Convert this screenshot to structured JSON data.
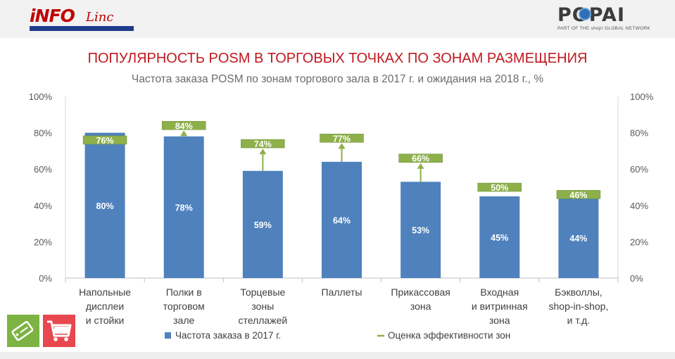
{
  "header": {
    "logo_left": {
      "word": "iNFO",
      "script": "Linc"
    },
    "logo_right": {
      "word": "POPAI",
      "tagline": "PART OF THE shop! GLOBAL NETWORK"
    }
  },
  "title": "ПОПУЛЯРНОСТЬ POSM В ТОРГОВЫХ ТОЧКАХ ПО ЗОНАМ РАЗМЕЩЕНИЯ",
  "subtitle": "Частота заказа POSM по зонам торгового зала в 2017 г. и ожидания на 2018 г., %",
  "colors": {
    "bar": "#4f81bd",
    "marker": "#8db04a",
    "title": "#c0181f",
    "axis_text": "#595959",
    "bar_label": "#ffffff"
  },
  "icons": [
    "tag-icon",
    "shopping-cart-icon"
  ],
  "chart_data": {
    "type": "bar",
    "categories": [
      [
        "Напольные",
        "дисплеи",
        "и стойки"
      ],
      [
        "Полки в",
        "торговом",
        "зале"
      ],
      [
        "Торцевые",
        "зоны",
        "стеллажей"
      ],
      [
        "Паллеты"
      ],
      [
        "Прикассовая",
        "зона"
      ],
      [
        "Входная",
        "и витринная",
        "зона"
      ],
      [
        "Бэкволлы,",
        "shop-in-shop,",
        "и т.д."
      ]
    ],
    "series": [
      {
        "name": "Частота заказа в 2017 г.",
        "type": "bar",
        "values": [
          80,
          78,
          59,
          64,
          53,
          45,
          44
        ],
        "labels": [
          "80%",
          "78%",
          "59%",
          "64%",
          "53%",
          "45%",
          "44%"
        ]
      },
      {
        "name": "Оценка эффективности зон",
        "type": "marker",
        "values": [
          76,
          84,
          74,
          77,
          66,
          50,
          46
        ],
        "labels": [
          "76%",
          "84%",
          "74%",
          "77%",
          "66%",
          "50%",
          "46%"
        ]
      }
    ],
    "ylim": [
      0,
      100
    ],
    "yticks": [
      "0%",
      "20%",
      "40%",
      "60%",
      "80%",
      "100%"
    ],
    "secondary_yticks": [
      "0%",
      "20%",
      "40%",
      "60%",
      "80%",
      "100%"
    ],
    "grid": false,
    "legend": "bottom"
  }
}
